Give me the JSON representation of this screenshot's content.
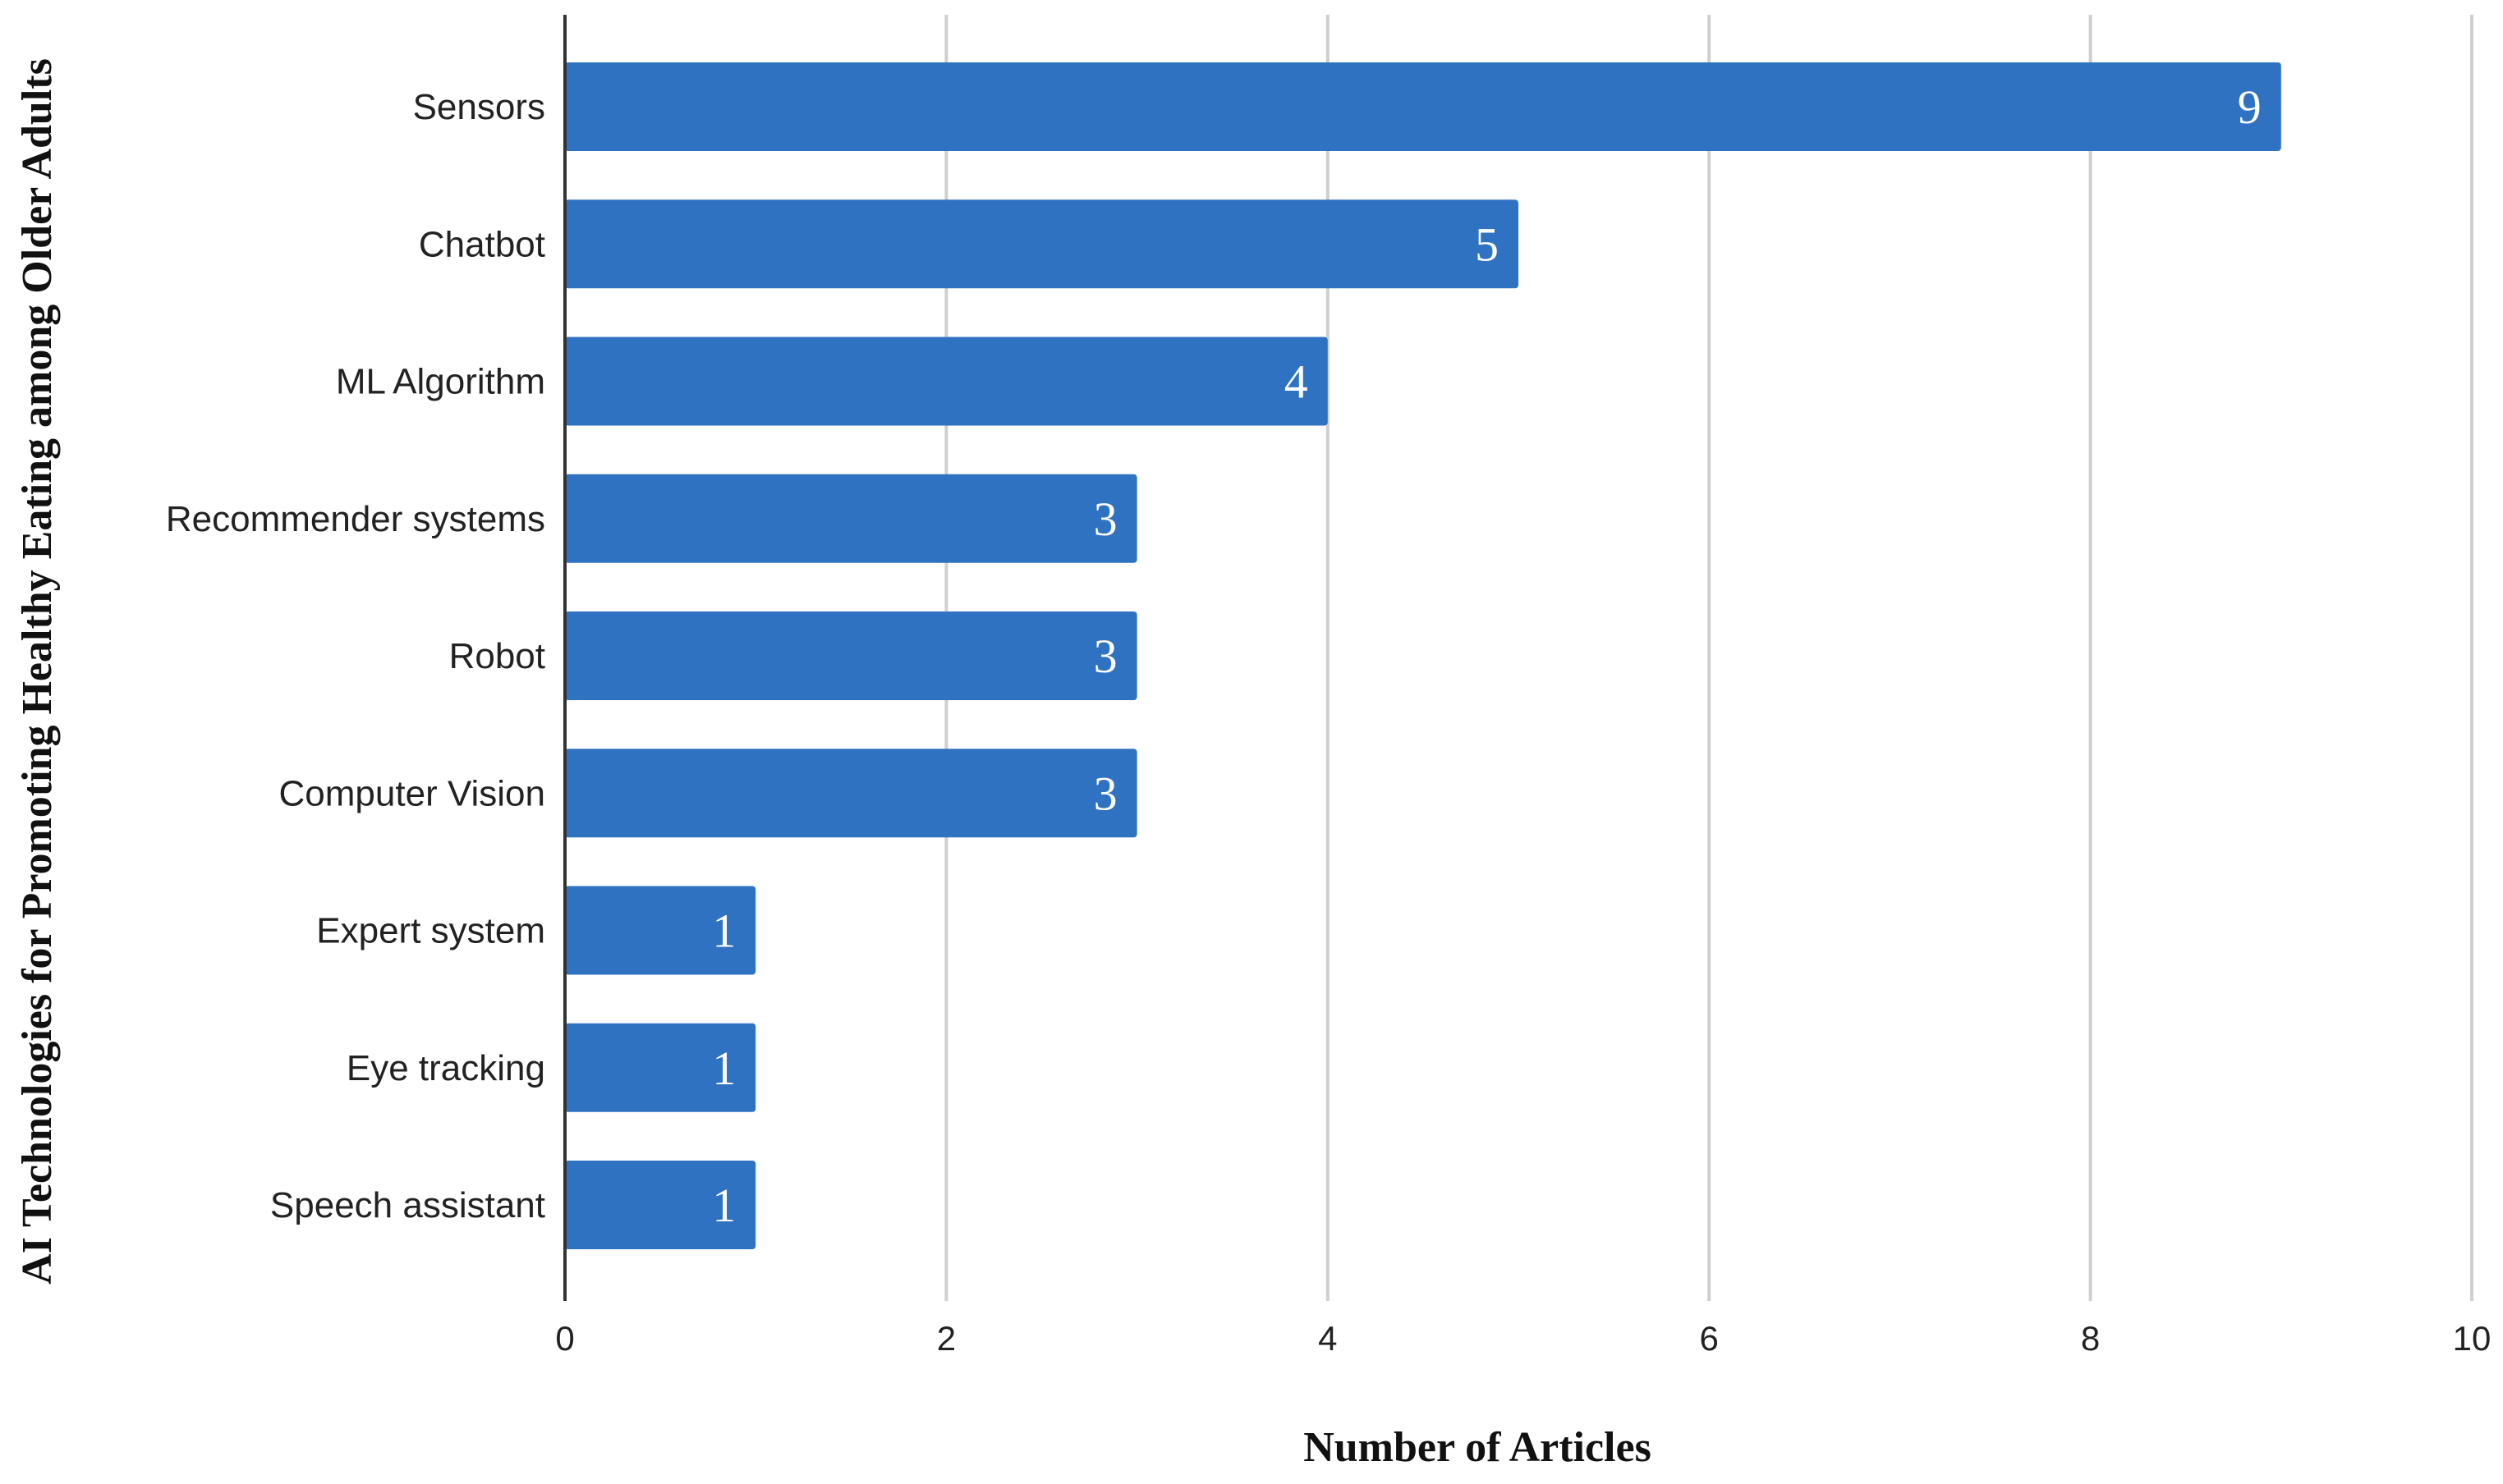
{
  "chart_data": {
    "type": "bar",
    "orientation": "horizontal",
    "categories": [
      "Sensors",
      "Chatbot",
      "ML Algorithm",
      "Recommender systems",
      "Robot",
      "Computer Vision",
      "Expert system",
      "Eye tracking",
      "Speech assistant"
    ],
    "values": [
      9,
      5,
      4,
      3,
      3,
      3,
      1,
      1,
      1
    ],
    "data_labels": [
      "9",
      "5",
      "4",
      "3",
      "3",
      "3",
      "1",
      "1",
      "1"
    ],
    "xlabel": "Number of Articles",
    "ylabel": "AI Technologies for Promoting Healthy Eating among Older Adults",
    "xlim": [
      0,
      10
    ],
    "xticks": [
      0,
      2,
      4,
      6,
      8,
      10
    ],
    "xtick_labels": [
      "0",
      "2",
      "4",
      "6",
      "8",
      "10"
    ],
    "grid": "vertical",
    "legend": "none",
    "bar_color": "#3072c2"
  }
}
